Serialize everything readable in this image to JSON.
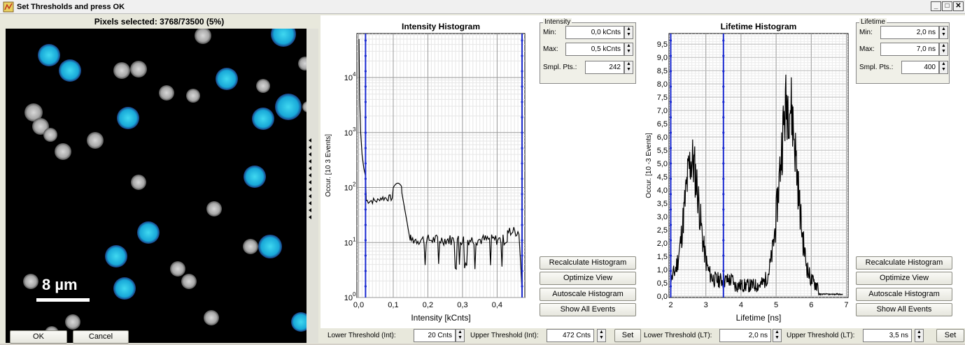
{
  "window": {
    "title": "Set Thresholds and press OK"
  },
  "image_panel": {
    "pixels_label": "Pixels selected: 3768/73500 (5%)",
    "scale_label": "8 µm"
  },
  "buttons": {
    "ok": "OK",
    "cancel": "Cancel"
  },
  "intensity": {
    "title": "Intensity Histogram",
    "xlabel": "Intensity [kCnts]",
    "ylabel": "Occur. [10 3 Events]",
    "group_title": "Intensity",
    "min_label": "Min:",
    "min_value": "0,0 kCnts",
    "max_label": "Max:",
    "max_value": "0,5 kCnts",
    "smpl_label": "Smpl. Pts.:",
    "smpl_value": "242",
    "x_ticks": [
      "0,0",
      "0,1",
      "0,2",
      "0,3",
      "0,4"
    ],
    "y_ticks": [
      "10",
      "10",
      "10",
      "10",
      "10"
    ],
    "y_exps": [
      "0",
      "1",
      "2",
      "3",
      "4"
    ],
    "buttons": [
      "Recalculate Histogram",
      "Optimize View",
      "Autoscale Histogram",
      "Show All Events"
    ],
    "lower_label": "Lower Threshold (Int):",
    "lower_value": "20 Cnts",
    "upper_label": "Upper Threshold (Int):",
    "upper_value": "472 Cnts",
    "set_label": "Set"
  },
  "lifetime": {
    "title": "Lifetime Histogram",
    "xlabel": "Lifetime [ns]",
    "ylabel": "Occur. [10 -3 Events]",
    "group_title": "Lifetime",
    "min_label": "Min:",
    "min_value": "2,0 ns",
    "max_label": "Max:",
    "max_value": "7,0 ns",
    "smpl_label": "Smpl. Pts.:",
    "smpl_value": "400",
    "x_ticks": [
      "2",
      "3",
      "4",
      "5",
      "6",
      "7"
    ],
    "y_ticks": [
      "0,0",
      "0,5",
      "1,0",
      "1,5",
      "2,0",
      "2,5",
      "3,0",
      "3,5",
      "4,0",
      "4,5",
      "5,0",
      "5,5",
      "6,0",
      "6,5",
      "7,0",
      "7,5",
      "8,0",
      "8,5",
      "9,0",
      "9,5"
    ],
    "buttons": [
      "Recalculate Histogram",
      "Optimize View",
      "Autoscale Histogram",
      "Show All Events"
    ],
    "lower_label": "Lower Threshold (LT):",
    "lower_value": "2,0 ns",
    "upper_label": "Upper Threshold (LT):",
    "upper_value": "3,5 ns",
    "set_label": "Set"
  },
  "colors": {
    "threshold_line": "#1a2ad0",
    "cell_selected": "#1fb8e0",
    "background": "#e8e8dc"
  }
}
